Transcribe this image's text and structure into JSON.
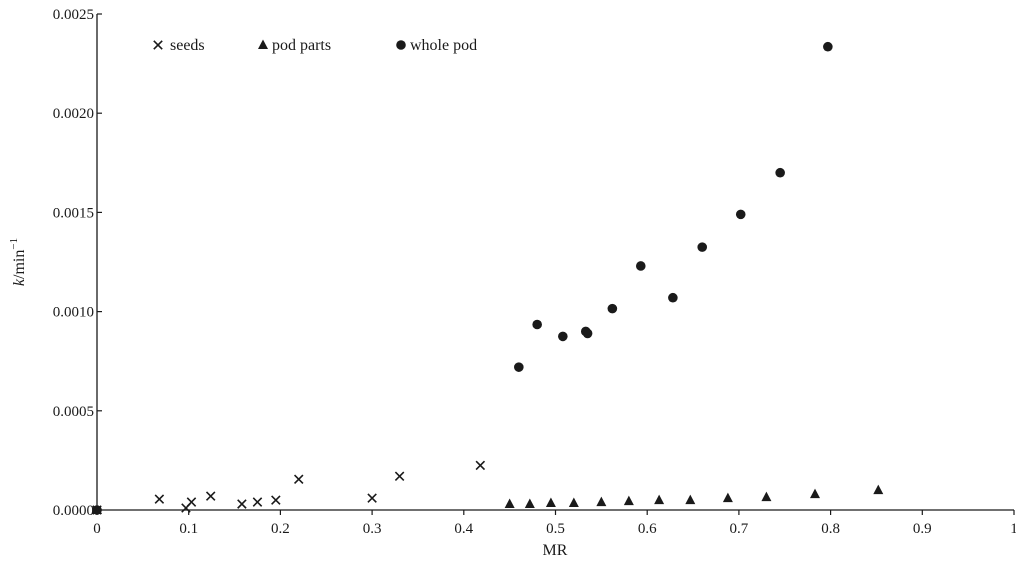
{
  "chart_data": {
    "type": "scatter",
    "title": "",
    "xlabel": "MR",
    "ylabel_italic": "k",
    "ylabel_rest": "/min",
    "ylabel_sup": "−1",
    "xlim": [
      0,
      1
    ],
    "ylim": [
      0,
      0.0025
    ],
    "x_ticks": [
      0,
      0.1,
      0.2,
      0.3,
      0.4,
      0.5,
      0.6,
      0.7,
      0.8,
      0.9,
      1
    ],
    "x_tick_labels": [
      "0",
      "0.1",
      "0.2",
      "0.3",
      "0.4",
      "0.5",
      "0.6",
      "0.7",
      "0.8",
      "0.9",
      "1"
    ],
    "y_ticks": [
      0,
      0.0005,
      0.001,
      0.0015,
      0.002,
      0.0025
    ],
    "y_tick_labels": [
      "0.0000",
      "0.0005",
      "0.0010",
      "0.0015",
      "0.0020",
      "0.0025"
    ],
    "grid": false,
    "legend_position": "top-left",
    "series": [
      {
        "name": "seeds",
        "marker": "x",
        "color": "#1a1a1a",
        "x": [
          0,
          0.068,
          0.097,
          0.103,
          0.124,
          0.158,
          0.175,
          0.195,
          0.22,
          0.3,
          0.33,
          0.418
        ],
        "y": [
          0,
          5.5e-05,
          1e-05,
          4e-05,
          7e-05,
          3e-05,
          4e-05,
          5e-05,
          0.000155,
          6e-05,
          0.00017,
          0.000225
        ]
      },
      {
        "name": "pod parts",
        "marker": "triangle",
        "color": "#1a1a1a",
        "x": [
          0,
          0.45,
          0.472,
          0.495,
          0.52,
          0.55,
          0.58,
          0.613,
          0.647,
          0.688,
          0.73,
          0.783,
          0.852
        ],
        "y": [
          0,
          3e-05,
          3e-05,
          3.5e-05,
          3.5e-05,
          4e-05,
          4.5e-05,
          5e-05,
          5e-05,
          6e-05,
          6.5e-05,
          8e-05,
          0.0001
        ]
      },
      {
        "name": "whole pod",
        "marker": "circle",
        "color": "#1a1a1a",
        "x": [
          0,
          0.46,
          0.48,
          0.508,
          0.533,
          0.535,
          0.562,
          0.593,
          0.628,
          0.66,
          0.702,
          0.745,
          0.797
        ],
        "y": [
          0,
          0.00072,
          0.000935,
          0.000875,
          0.0009,
          0.00089,
          0.001015,
          0.00123,
          0.00107,
          0.001325,
          0.00149,
          0.0017,
          0.002335
        ]
      }
    ]
  }
}
